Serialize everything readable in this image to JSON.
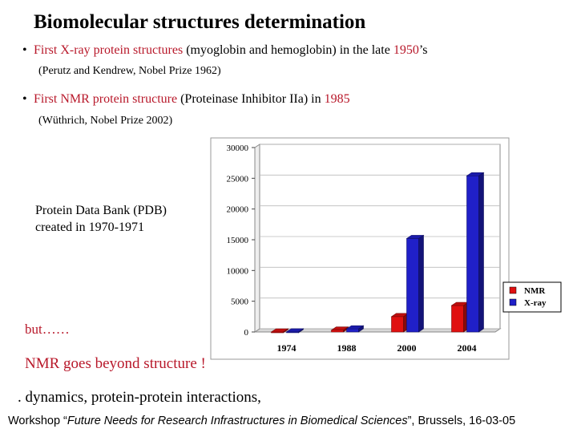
{
  "slide": {
    "title": "Biomolecular structures determination",
    "bullet1": {
      "prefix": "First X-ray protein structures ",
      "middle": "(myoglobin and hemoglobin) in the late ",
      "year": "1950",
      "suffix": "’s",
      "sub": "(Perutz and Kendrew, Nobel Prize 1962)"
    },
    "bullet2": {
      "prefix": "First NMR protein structure ",
      "middle": "(Proteinase Inhibitor IIa) in ",
      "year": "1985",
      "sub": "(Wüthrich, Nobel Prize 2002)"
    },
    "pdb_line1": "Protein Data Bank (PDB)",
    "pdb_line2": "created in 1970-1971",
    "but_text": "but……",
    "nmr_note": "NMR goes beyond structure !",
    "dynamics": ". dynamics, protein-protein interactions,",
    "footer": {
      "start": "Workshop “",
      "italic": "Future Needs for Research Infrastructures in Biomedical Sciences",
      "end": "”, Brussels, 16-03-05"
    }
  },
  "colors": {
    "nmr": "#e01010",
    "xray": "#2020c8",
    "accent": "#b8182a"
  },
  "chart_data": {
    "type": "bar",
    "title": "",
    "xlabel": "",
    "ylabel": "",
    "categories": [
      "1974",
      "1988",
      "2000",
      "2004"
    ],
    "series": [
      {
        "name": "NMR",
        "values": [
          0,
          300,
          2500,
          4300
        ]
      },
      {
        "name": "X-ray",
        "values": [
          10,
          500,
          15200,
          25400
        ]
      }
    ],
    "ylim": [
      0,
      30000
    ],
    "yticks": [
      "0",
      "5000",
      "10000",
      "15000",
      "20000",
      "25000",
      "30000"
    ],
    "legend_position": "right",
    "style": "3d"
  }
}
